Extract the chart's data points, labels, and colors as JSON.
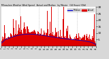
{
  "bg_color": "#d8d8d8",
  "plot_bg": "#ffffff",
  "bar_color": "#dd0000",
  "line_color": "#0000cc",
  "n_points": 1440,
  "ylim": [
    0,
    30
  ],
  "yticks": [
    5,
    10,
    15,
    20,
    25,
    30
  ],
  "vline_positions": [
    288,
    576,
    864,
    1152
  ],
  "vline_color": "#aaaaaa",
  "legend_bar_label": "Actual",
  "legend_line_label": "Median",
  "title_text": "Milwaukee Weather Wind Speed   Actual and Median   by Minute   (24 Hours) (Old)"
}
